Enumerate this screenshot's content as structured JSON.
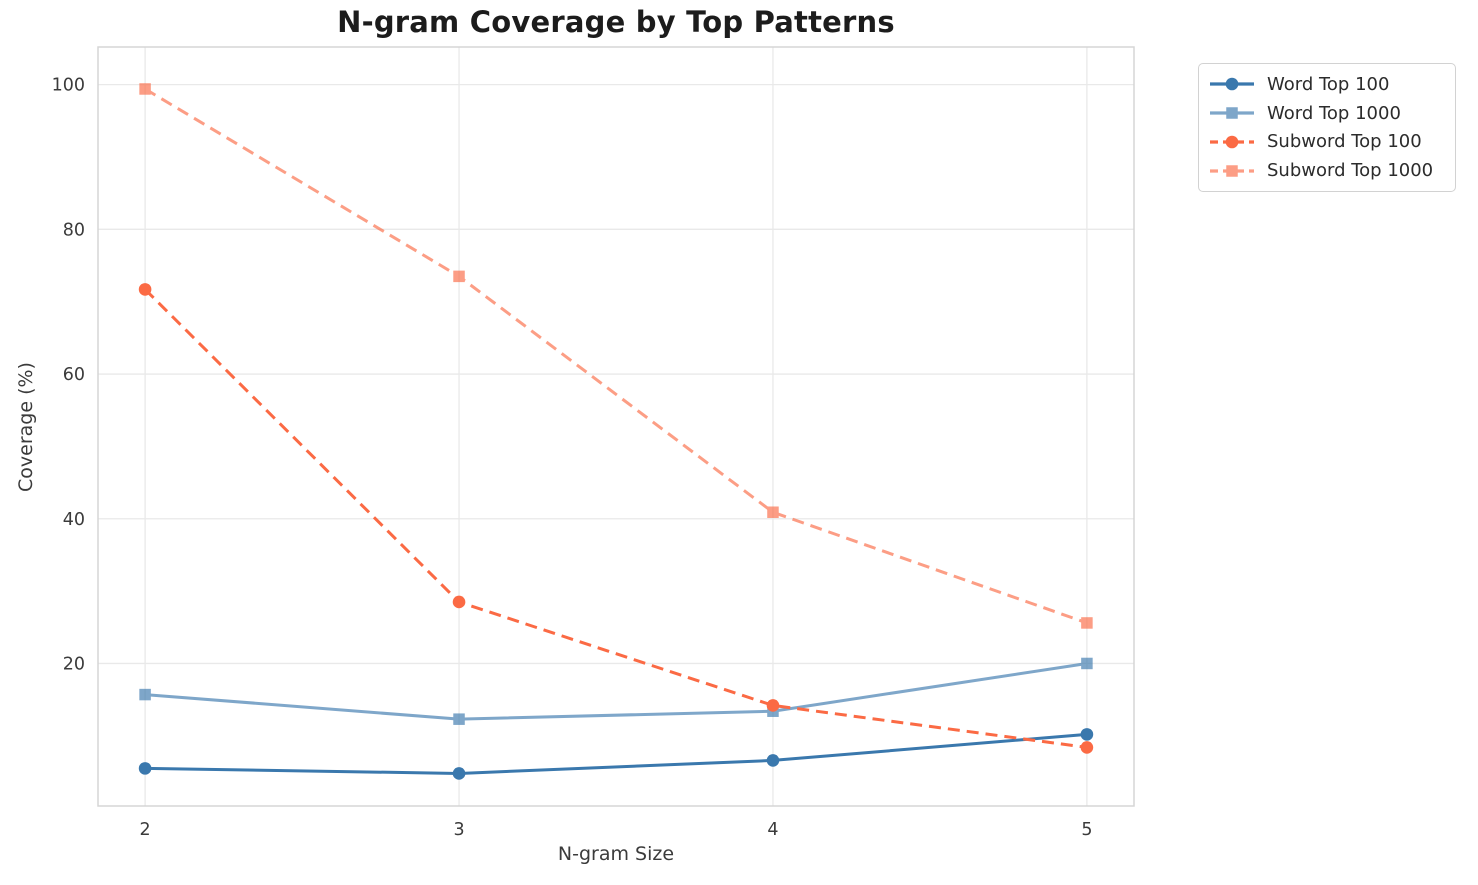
{
  "chart_data": {
    "type": "line",
    "title": "N-gram Coverage by Top Patterns",
    "xlabel": "N-gram Size",
    "ylabel": "Coverage (%)",
    "x": [
      2,
      3,
      4,
      5
    ],
    "xtick_labels": [
      "2",
      "3",
      "4",
      "5"
    ],
    "ytick_values": [
      20,
      40,
      60,
      80,
      100
    ],
    "ytick_labels": [
      "20",
      "40",
      "60",
      "80",
      "100"
    ],
    "xlim": [
      1.85,
      5.15
    ],
    "ylim": [
      0.3,
      105.2
    ],
    "grid": true,
    "legend_position": "outside-top-right",
    "series": [
      {
        "name": "Word Top 100",
        "values": [
          5.5,
          4.8,
          6.6,
          10.2
        ],
        "color": "#3a78ad",
        "opacity": 1,
        "dash": "solid",
        "marker": "circle"
      },
      {
        "name": "Word Top 1000",
        "values": [
          15.7,
          12.3,
          13.4,
          20.0
        ],
        "color": "#3a78ad",
        "opacity": 0.65,
        "dash": "solid",
        "marker": "square"
      },
      {
        "name": "Subword Top 100",
        "values": [
          71.7,
          28.5,
          14.2,
          8.4
        ],
        "color": "#fb6a44",
        "opacity": 1,
        "dash": "dashed",
        "marker": "circle"
      },
      {
        "name": "Subword Top 1000",
        "values": [
          99.4,
          73.5,
          40.9,
          25.6
        ],
        "color": "#fb6a44",
        "opacity": 0.65,
        "dash": "dashed",
        "marker": "square"
      }
    ],
    "style_colors": {
      "blue": "#3a78ad",
      "orange": "#fb6a44",
      "gridline": "#e9e9e9",
      "spine": "#d5d5d5",
      "tick_text": "#3b3b3b",
      "title_text": "#1c1c1c"
    }
  }
}
